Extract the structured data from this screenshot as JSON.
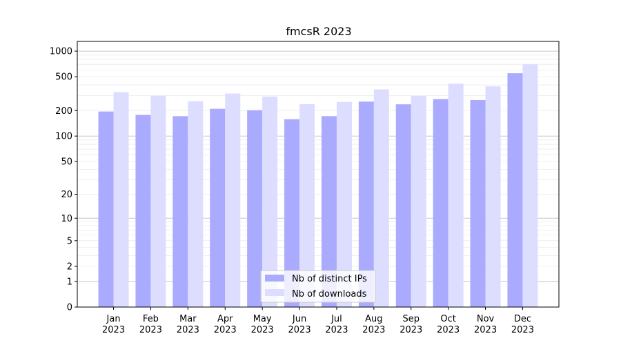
{
  "chart_data": {
    "type": "bar",
    "title": "fmcsR 2023",
    "xlabel": "",
    "ylabel": "",
    "yscale": "symlog",
    "ylim": [
      0,
      1300
    ],
    "yticks": [
      0,
      1,
      2,
      5,
      10,
      20,
      50,
      100,
      200,
      500,
      1000
    ],
    "ytick_labels": [
      "0",
      "1",
      "2",
      "5",
      "10",
      "20",
      "50",
      "100",
      "200",
      "500",
      "1000"
    ],
    "grid": true,
    "legend_position": "bottom-center",
    "categories": [
      {
        "month": "Jan",
        "year": "2023"
      },
      {
        "month": "Feb",
        "year": "2023"
      },
      {
        "month": "Mar",
        "year": "2023"
      },
      {
        "month": "Apr",
        "year": "2023"
      },
      {
        "month": "May",
        "year": "2023"
      },
      {
        "month": "Jun",
        "year": "2023"
      },
      {
        "month": "Jul",
        "year": "2023"
      },
      {
        "month": "Aug",
        "year": "2023"
      },
      {
        "month": "Sep",
        "year": "2023"
      },
      {
        "month": "Oct",
        "year": "2023"
      },
      {
        "month": "Nov",
        "year": "2023"
      },
      {
        "month": "Dec",
        "year": "2023"
      }
    ],
    "series": [
      {
        "name": "Nb of distinct IPs",
        "color": "#aaaaff",
        "values": [
          195,
          178,
          172,
          210,
          202,
          158,
          172,
          255,
          237,
          273,
          266,
          550
        ]
      },
      {
        "name": "Nb of downloads",
        "color": "#ddddff",
        "values": [
          330,
          300,
          258,
          318,
          293,
          238,
          253,
          355,
          298,
          415,
          385,
          700
        ]
      }
    ]
  }
}
